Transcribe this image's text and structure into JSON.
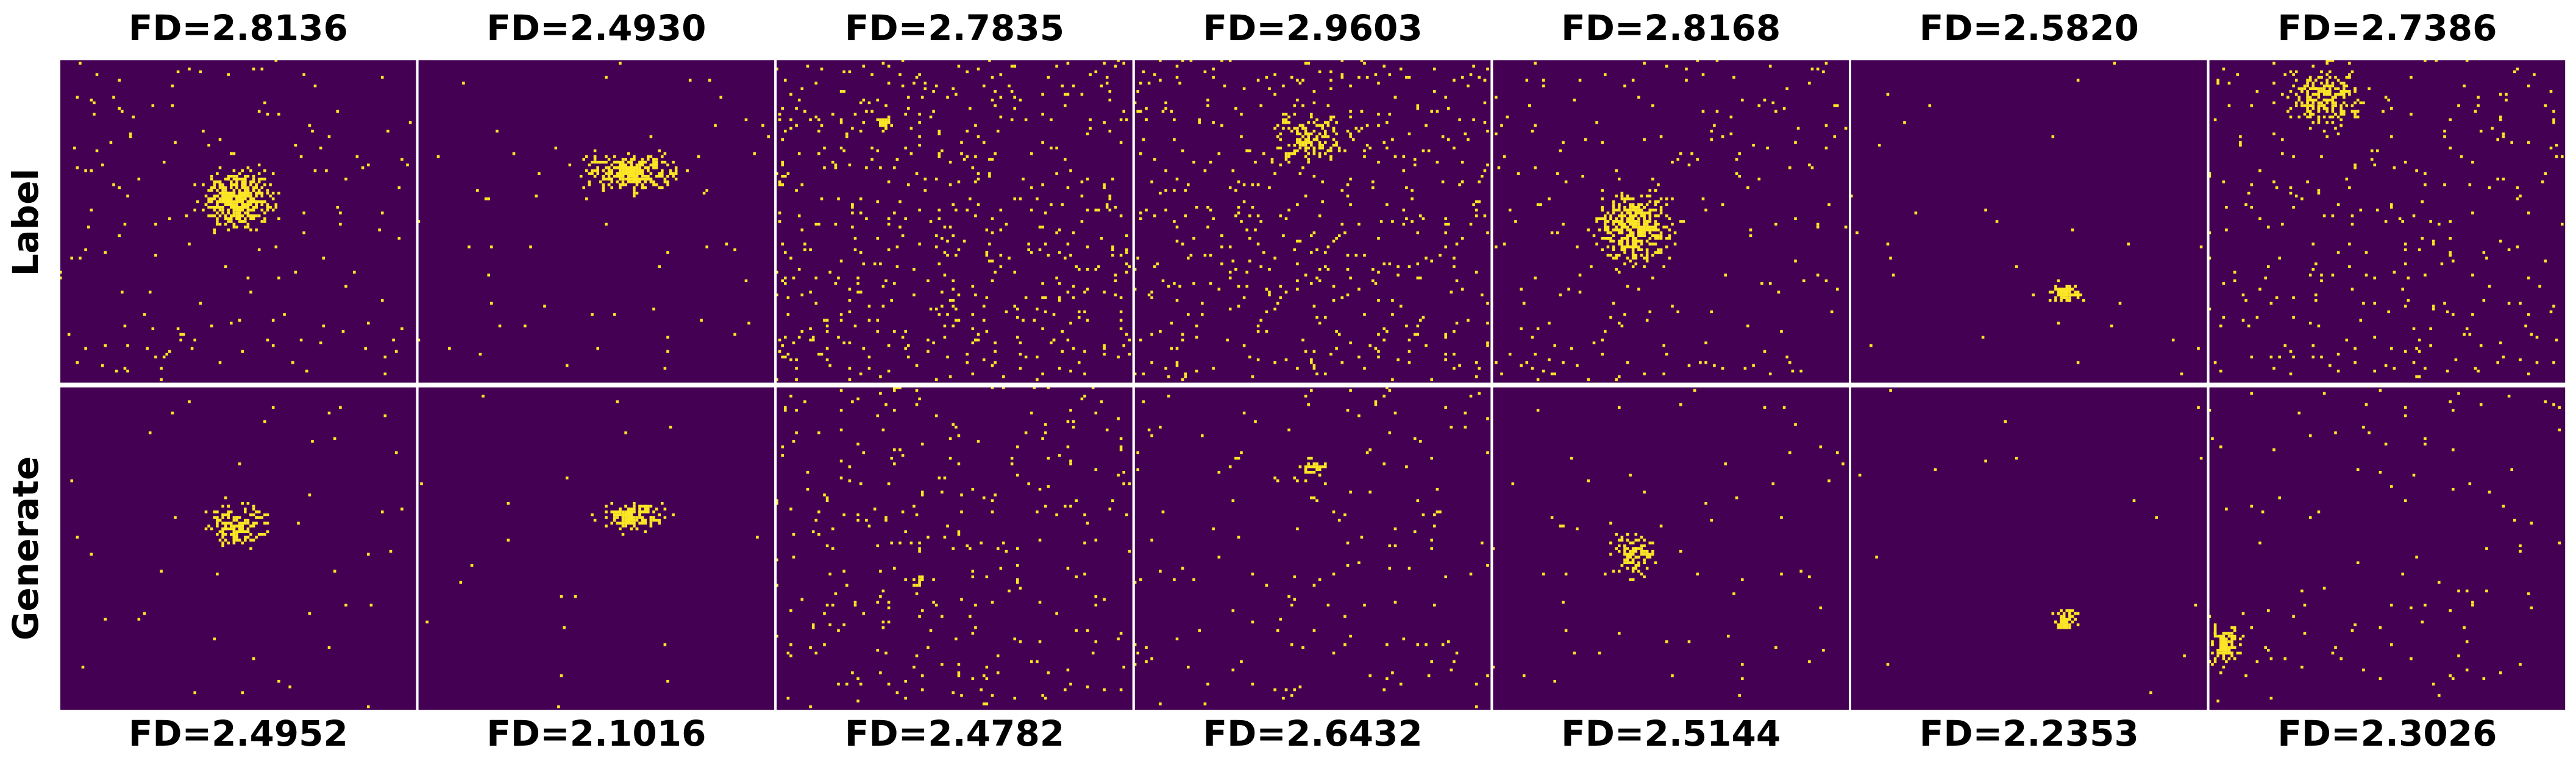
{
  "rows": [
    "Label",
    "Generate"
  ],
  "columns": [
    {
      "top": "FD=2.8136",
      "bottom": "FD=2.4952"
    },
    {
      "top": "FD=2.4930",
      "bottom": "FD=2.1016"
    },
    {
      "top": "FD=2.7835",
      "bottom": "FD=2.4782"
    },
    {
      "top": "FD=2.9603",
      "bottom": "FD=2.6432"
    },
    {
      "top": "FD=2.8168",
      "bottom": "FD=2.5144"
    },
    {
      "top": "FD=2.5820",
      "bottom": "FD=2.2353"
    },
    {
      "top": "FD=2.7386",
      "bottom": "FD=2.3026"
    }
  ]
}
